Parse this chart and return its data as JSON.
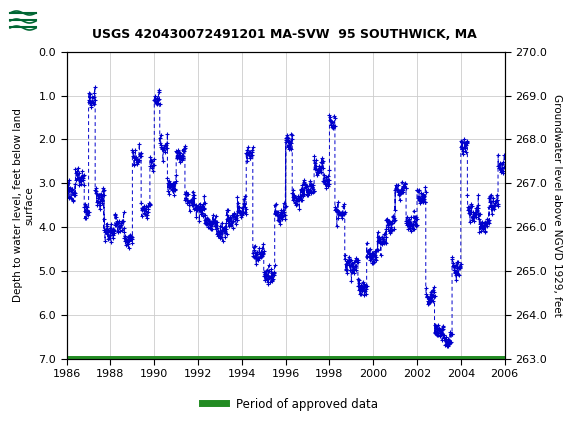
{
  "title": "USGS 420430072491201 MA-SVW  95 SOUTHWICK, MA",
  "ylabel_left": "Depth to water level, feet below land\nsurface",
  "ylabel_right": "Groundwater level above NGVD 1929, feet",
  "ylim_left": [
    7.0,
    0.0
  ],
  "ylim_right": [
    263.0,
    270.0
  ],
  "yticks_left": [
    0.0,
    1.0,
    2.0,
    3.0,
    4.0,
    5.0,
    6.0,
    7.0
  ],
  "yticks_right": [
    263.0,
    264.0,
    265.0,
    266.0,
    267.0,
    268.0,
    269.0,
    270.0
  ],
  "xlim": [
    1986,
    2006
  ],
  "xticks": [
    1986,
    1988,
    1990,
    1992,
    1994,
    1996,
    1998,
    2000,
    2002,
    2004,
    2006
  ],
  "line_color": "#0000CC",
  "marker_color": "#0000CC",
  "legend_line_color": "#228B22",
  "legend_label": "Period of approved data",
  "header_bg": "#006633",
  "plot_bg": "#ffffff",
  "grid_color": "#cccccc",
  "green_bar_color": "#228B22"
}
